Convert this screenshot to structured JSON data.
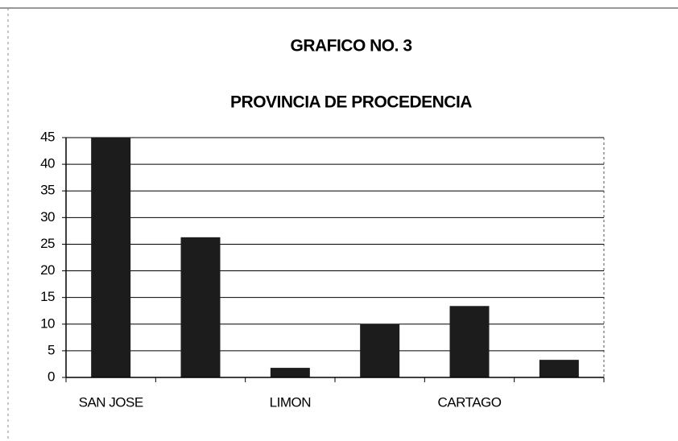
{
  "chart_data": {
    "type": "bar",
    "title": "GRAFICO NO. 3",
    "subtitle": "PROVINCIA DE PROCEDENCIA",
    "categories": [
      "SAN JOSE",
      null,
      "LIMON",
      null,
      "CARTAGO",
      null
    ],
    "values": [
      45,
      26.3,
      1.8,
      10,
      13.4,
      3.3
    ],
    "color": "#1c1c1c",
    "ylim": [
      0,
      45
    ],
    "yticks": [
      0,
      5,
      10,
      15,
      20,
      25,
      30,
      35,
      40,
      45
    ],
    "grid": true
  }
}
